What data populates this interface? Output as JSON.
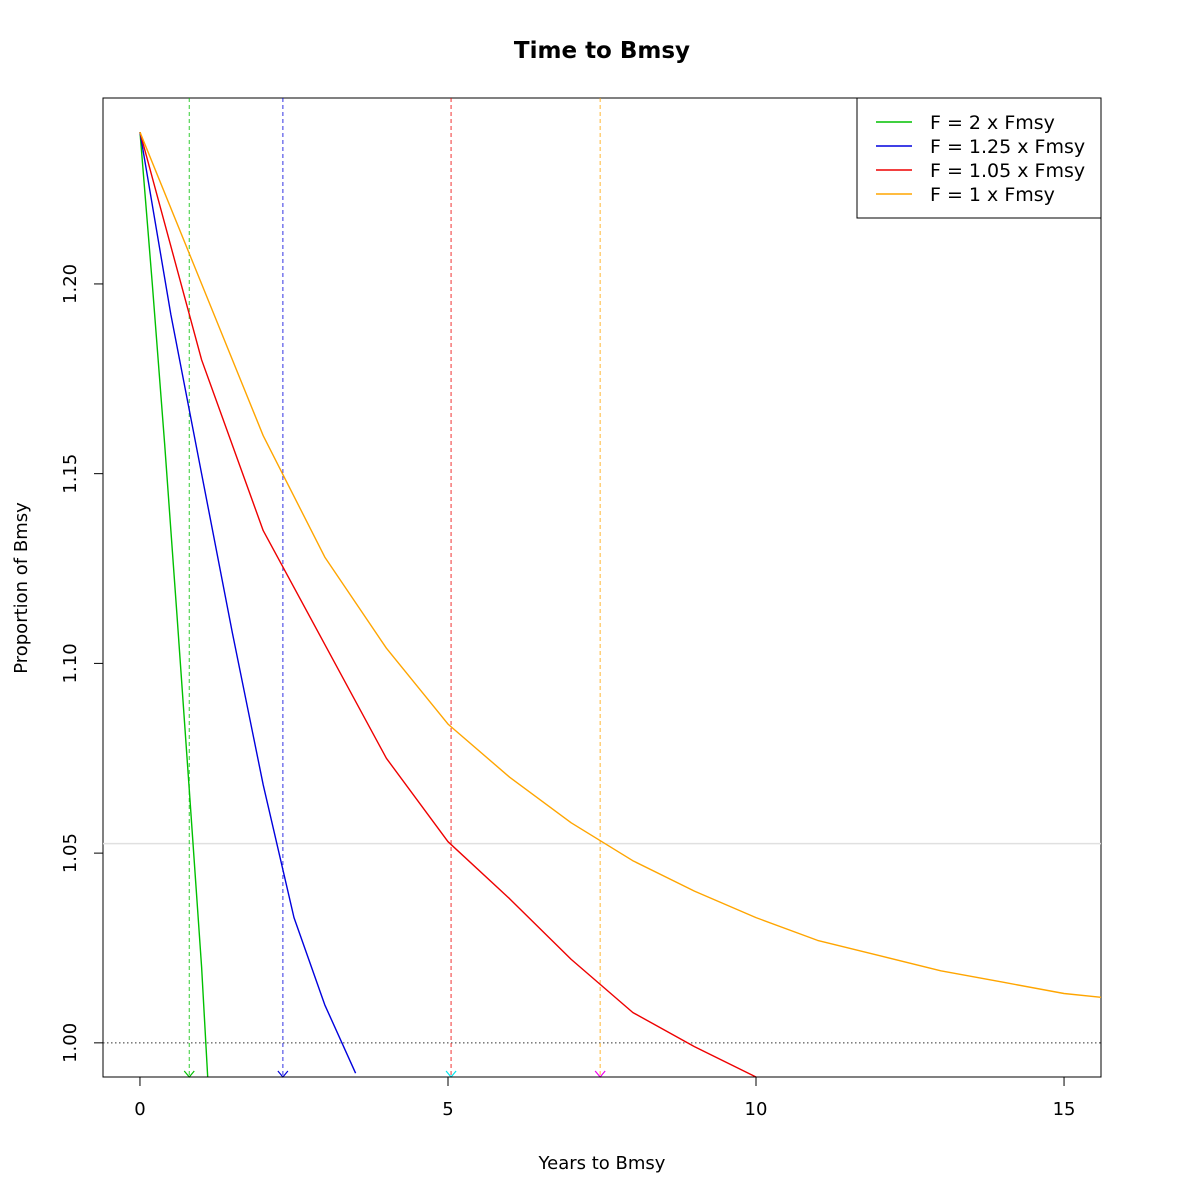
{
  "chart_data": {
    "type": "line",
    "title": "Time to Bmsy",
    "xlabel": "Years to Bmsy",
    "ylabel": "Proportion of Bmsy",
    "xlim": [
      -0.6,
      15.6
    ],
    "ylim": [
      0.991,
      1.249
    ],
    "x_ticks": [
      0,
      5,
      10,
      15
    ],
    "x_tick_labels": [
      "0",
      "5",
      "10",
      "15"
    ],
    "y_ticks": [
      1.0,
      1.05,
      1.1,
      1.15,
      1.2
    ],
    "y_tick_labels": [
      "1.00",
      "1.05",
      "1.10",
      "1.15",
      "1.20"
    ],
    "reference_lines": {
      "horizontal_dotted": 1.0,
      "horizontal_gray": 1.0525
    },
    "legend": {
      "position": "top-right"
    },
    "series": [
      {
        "name": "F = 2 x Fmsy",
        "color": "#00c000",
        "x": [
          0,
          0.2,
          0.4,
          0.6,
          0.8,
          1.0,
          1.1
        ],
        "y": [
          1.24,
          1.2,
          1.158,
          1.113,
          1.067,
          1.02,
          0.991
        ],
        "time_to_target": 0.8
      },
      {
        "name": "F = 1.25 x Fmsy",
        "color": "#0000dd",
        "x": [
          0,
          0.5,
          1.0,
          1.5,
          2.0,
          2.5,
          3.0,
          3.5
        ],
        "y": [
          1.24,
          1.192,
          1.15,
          1.108,
          1.068,
          1.033,
          1.01,
          0.992
        ],
        "time_to_target": 2.32
      },
      {
        "name": "F = 1.05 x Fmsy",
        "color": "#ee0000",
        "x": [
          0,
          1,
          2,
          3,
          4,
          5,
          6,
          7,
          8,
          9,
          10
        ],
        "y": [
          1.24,
          1.18,
          1.135,
          1.105,
          1.075,
          1.053,
          1.038,
          1.022,
          1.008,
          0.999,
          0.991
        ],
        "time_to_target": 5.05
      },
      {
        "name": "F = 1 x Fmsy",
        "color": "#ffa500",
        "x": [
          0,
          1,
          2,
          3,
          4,
          5,
          6,
          7,
          8,
          9,
          10,
          11,
          12,
          13,
          14,
          15,
          15.6
        ],
        "y": [
          1.24,
          1.2,
          1.16,
          1.128,
          1.104,
          1.084,
          1.07,
          1.058,
          1.048,
          1.04,
          1.033,
          1.027,
          1.023,
          1.019,
          1.016,
          1.013,
          1.012
        ],
        "time_to_target": 7.47
      }
    ],
    "marker_arrow_colors": [
      "#00c000",
      "#0000dd",
      "#00e5ee",
      "#ee00ee"
    ]
  }
}
